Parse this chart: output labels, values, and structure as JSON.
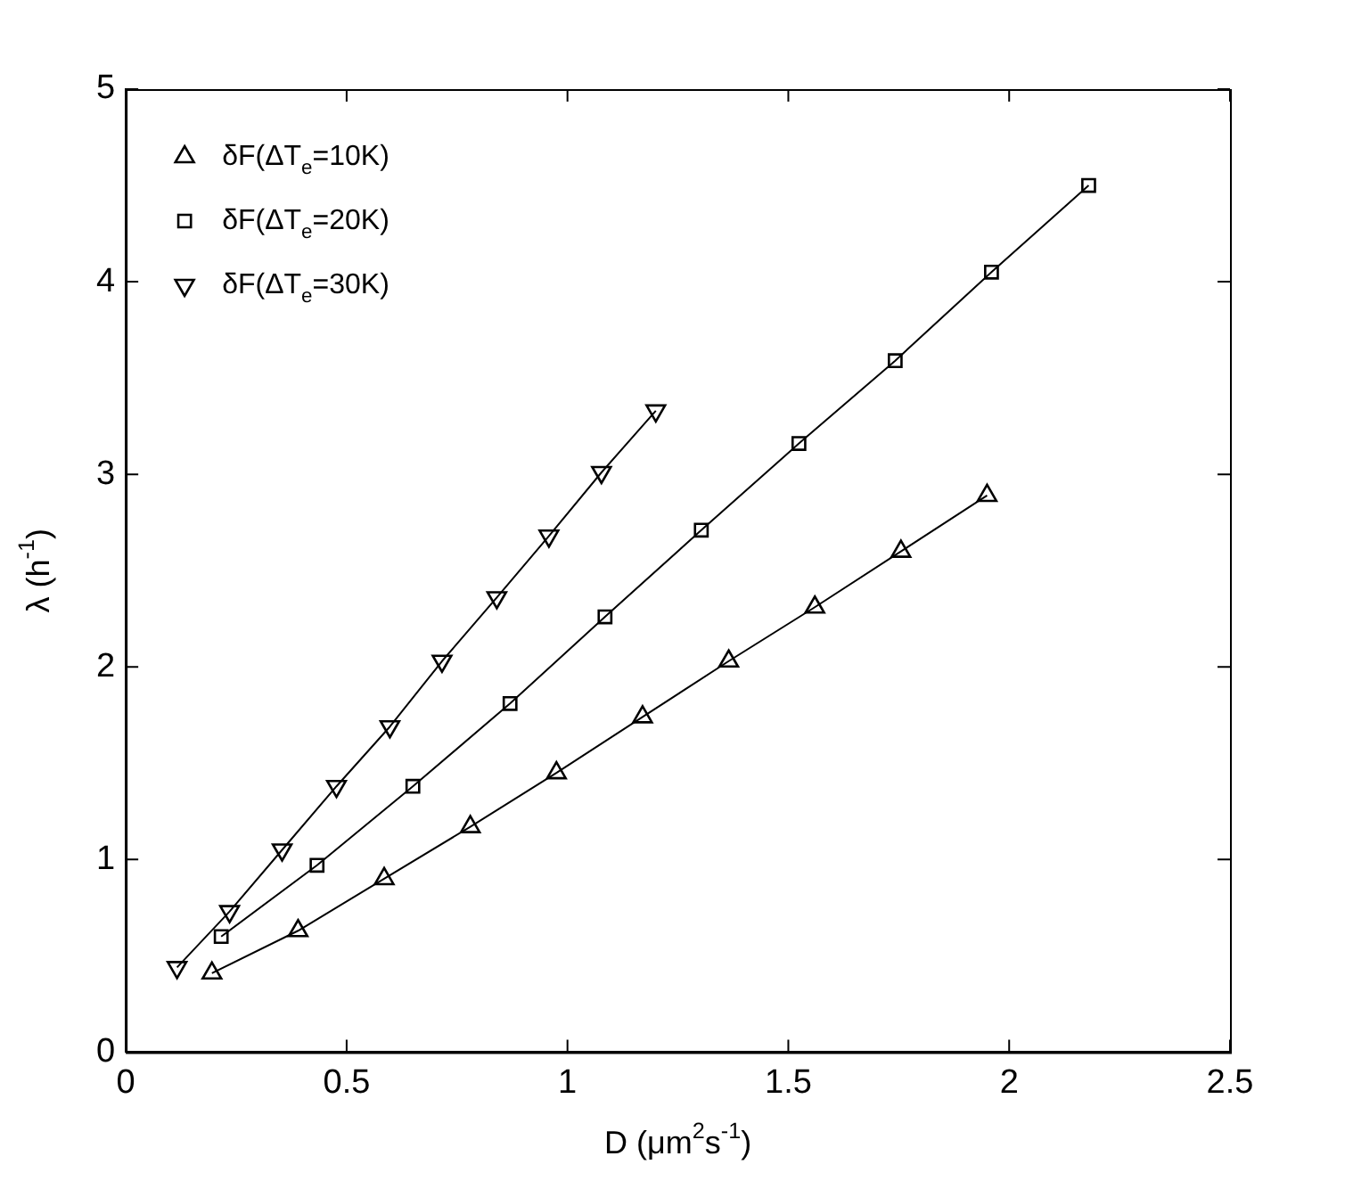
{
  "chart_data": {
    "type": "line",
    "xlabel": "D (μm$^{2}$s$^{-1}$)",
    "ylabel": "λ (h$^{-1}$)",
    "xlim": [
      0,
      2.5
    ],
    "xticks": [
      0,
      0.5,
      1,
      1.5,
      2,
      2.5
    ],
    "ylim": [
      0,
      5
    ],
    "yticks": [
      0,
      1,
      2,
      3,
      4,
      5
    ],
    "grid": false,
    "legend": "top left",
    "line_style": "solid",
    "series": [
      {
        "name": "δF(ΔT$_{e}$=10K)",
        "color": "#000000",
        "marker": "triangle",
        "x": [
          0.195,
          0.39,
          0.585,
          0.78,
          0.975,
          1.17,
          1.365,
          1.56,
          1.755,
          1.95
        ],
        "values": [
          0.41,
          0.63,
          0.9,
          1.17,
          1.45,
          1.74,
          2.03,
          2.31,
          2.6,
          2.89
        ]
      },
      {
        "name": "δF(ΔT$_{e}$=20K)",
        "color": "#000000",
        "marker": "square",
        "x": [
          0.216,
          0.433,
          0.65,
          0.87,
          1.085,
          1.303,
          1.524,
          1.742,
          1.96,
          2.18
        ],
        "values": [
          0.6,
          0.97,
          1.38,
          1.81,
          2.26,
          2.71,
          3.16,
          3.59,
          4.05,
          4.5
        ]
      },
      {
        "name": "δF(ΔT$_{e}$=30K)",
        "color": "#000000",
        "marker": "triangle-down",
        "x": [
          0.116,
          0.235,
          0.354,
          0.477,
          0.598,
          0.716,
          0.84,
          0.958,
          1.077,
          1.2
        ],
        "values": [
          0.44,
          0.73,
          1.05,
          1.38,
          1.69,
          2.03,
          2.36,
          2.68,
          3.01,
          3.33
        ]
      }
    ]
  }
}
